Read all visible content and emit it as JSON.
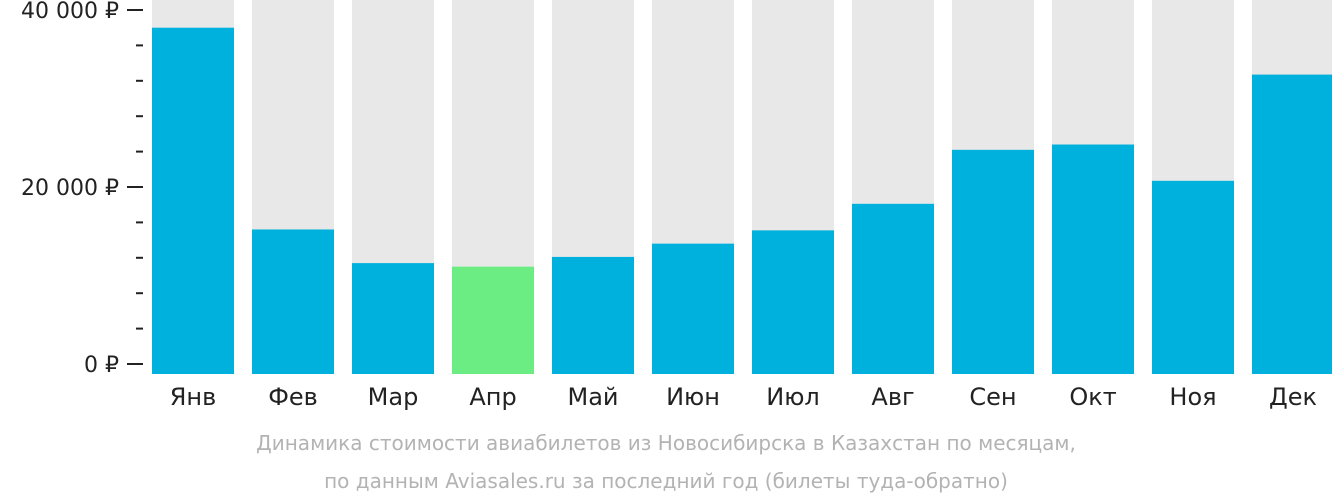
{
  "chart_data": {
    "type": "bar",
    "categories": [
      "Янв",
      "Фев",
      "Мар",
      "Апр",
      "Май",
      "Июн",
      "Июл",
      "Авг",
      "Сен",
      "Окт",
      "Ноя",
      "Дек"
    ],
    "values": [
      38000,
      15200,
      11400,
      11000,
      12100,
      13600,
      15100,
      18100,
      24200,
      24800,
      20700,
      32700
    ],
    "highlight_index": 3,
    "ylim": [
      0,
      40000
    ],
    "y_ticks": [
      {
        "value": 40000,
        "label": "40 000 ₽"
      },
      {
        "value": 20000,
        "label": "20 000 ₽"
      },
      {
        "value": 0,
        "label": "0 ₽"
      }
    ],
    "minor_tick_step": 4000,
    "colors": {
      "bar": "#00b0dd",
      "highlight": "#6ced84",
      "background_column": "#e8e8e8",
      "axis_text": "#222222",
      "caption": "#b3b3b3"
    },
    "grid": false,
    "legend": "none"
  },
  "caption": {
    "line1": "Динамика стоимости авиабилетов из Новосибирска в Казахстан по месяцам,",
    "line2": "по данным Aviasales.ru за последний год (билеты туда-обратно)"
  }
}
